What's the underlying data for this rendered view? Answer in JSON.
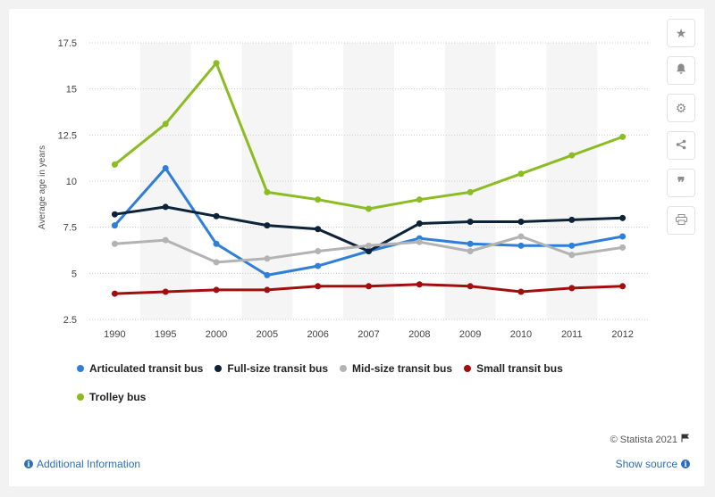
{
  "chart_data": {
    "type": "line",
    "title": "",
    "xlabel": "",
    "ylabel": "Average age in years",
    "categories": [
      "1990",
      "1995",
      "2000",
      "2005",
      "2006",
      "2007",
      "2008",
      "2009",
      "2010",
      "2011",
      "2012"
    ],
    "y_ticks": [
      "2.5",
      "5",
      "7.5",
      "10",
      "12.5",
      "15",
      "17.5"
    ],
    "ylim": [
      2.5,
      17.5
    ],
    "grid": "horizontal dotted",
    "legend_position": "bottom",
    "series": [
      {
        "name": "Articulated transit bus",
        "color": "#2f7ed8",
        "values": [
          7.6,
          10.7,
          6.6,
          4.9,
          5.4,
          6.2,
          6.9,
          6.6,
          6.5,
          6.5,
          7.0
        ]
      },
      {
        "name": "Full-size transit bus",
        "color": "#0d233a",
        "values": [
          8.2,
          8.6,
          8.1,
          7.6,
          7.4,
          6.2,
          7.7,
          7.8,
          7.8,
          7.9,
          8.0
        ]
      },
      {
        "name": "Mid-size transit bus",
        "color": "#b3b3b3",
        "values": [
          6.6,
          6.8,
          5.6,
          5.8,
          6.2,
          6.5,
          6.7,
          6.2,
          7.0,
          6.0,
          6.4
        ]
      },
      {
        "name": "Small transit bus",
        "color": "#a30d0d",
        "values": [
          3.9,
          4.0,
          4.1,
          4.1,
          4.3,
          4.3,
          4.4,
          4.3,
          4.0,
          4.2,
          4.3
        ]
      },
      {
        "name": "Trolley bus",
        "color": "#8bbc21",
        "values": [
          10.9,
          13.1,
          16.4,
          9.4,
          9.0,
          8.5,
          9.0,
          9.4,
          10.4,
          11.4,
          12.4
        ]
      }
    ]
  },
  "toolbar": {
    "icons": [
      "star-icon",
      "bell-icon",
      "gear-icon",
      "share-icon",
      "quote-icon",
      "print-icon"
    ]
  },
  "footer": {
    "credits": "© Statista 2021",
    "additional_info": "Additional Information",
    "show_source": "Show source"
  }
}
